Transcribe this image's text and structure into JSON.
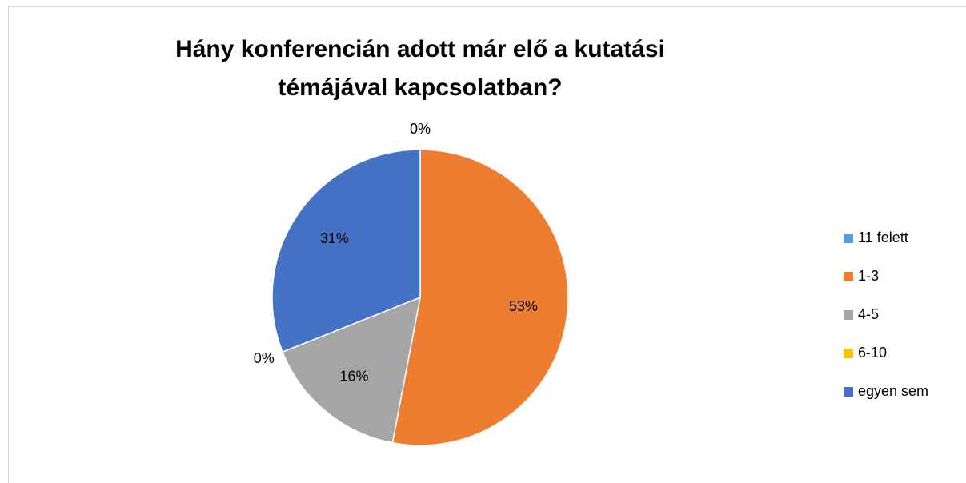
{
  "chart_data": {
    "type": "pie",
    "title": "Hány konferencián adott már elő a kutatási témájával kapcsolatban?",
    "categories": [
      "11 felett",
      "1-3",
      "4-5",
      "6-10",
      "egyen sem"
    ],
    "values": [
      0,
      53,
      16,
      0,
      31
    ],
    "value_labels": [
      "0%",
      "53%",
      "16%",
      "0%",
      "31%"
    ],
    "colors": [
      "#5b9bd5",
      "#ed7d31",
      "#a5a5a5",
      "#ffc000",
      "#4472c4"
    ],
    "legend": "right"
  }
}
